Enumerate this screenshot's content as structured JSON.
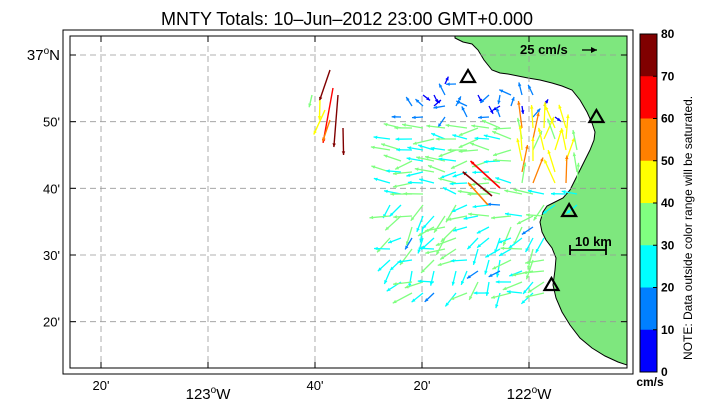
{
  "title": "MNTY Totals: 10–Jun–2012 23:00 GMT+0.000",
  "lat_labels": [
    {
      "lat": 37.0,
      "text": "37",
      "suffix": "N",
      "deg": true
    },
    {
      "lat": 36.8333,
      "text": "50'"
    },
    {
      "lat": 36.6667,
      "text": "40'"
    },
    {
      "lat": 36.5,
      "text": "30'"
    },
    {
      "lat": 36.3333,
      "text": "20'"
    }
  ],
  "lon_labels": [
    {
      "lon": -123.3333,
      "text": "20'"
    },
    {
      "lon": -123.0,
      "text": "123",
      "suffix": "W",
      "deg": true
    },
    {
      "lon": -122.6667,
      "text": "40'"
    },
    {
      "lon": -122.3333,
      "text": "20'"
    },
    {
      "lon": -122.0,
      "text": "122",
      "suffix": "W",
      "deg": true
    }
  ],
  "reference_vector": {
    "label": "25 cm/s"
  },
  "scale_bar": {
    "label": "10 km"
  },
  "colorbar": {
    "ticks": [
      "80",
      "70",
      "60",
      "50",
      "40",
      "30",
      "20",
      "10",
      "0"
    ],
    "unit": "cm/s",
    "colors": [
      "#800000",
      "#ff0000",
      "#ff8000",
      "#ffff00",
      "#80ff80",
      "#00ffff",
      "#0080ff",
      "#0000ff"
    ],
    "note": "NOTE: Data outside color range will be saturated."
  },
  "stations": [
    {
      "lon": -122.19,
      "lat": 36.945
    },
    {
      "lon": -121.79,
      "lat": 36.845
    },
    {
      "lon": -121.875,
      "lat": 36.61
    },
    {
      "lon": -121.93,
      "lat": 36.425
    }
  ],
  "colors": {
    "land": "#7ee77e",
    "coast": "#000000",
    "grid": "#999999"
  }
}
